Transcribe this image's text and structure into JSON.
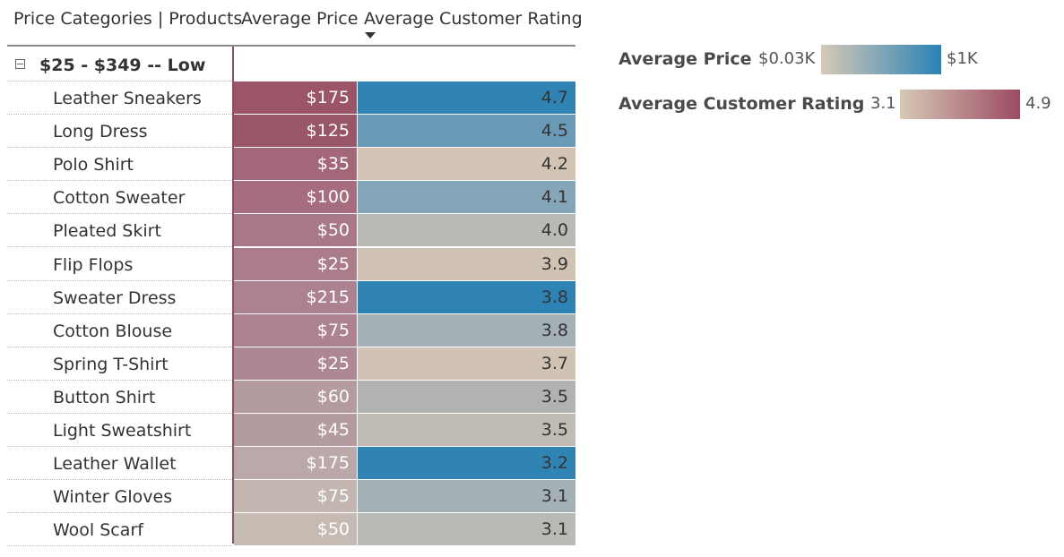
{
  "header": {
    "col1": "Price Categories | Products",
    "col2": "Average Price",
    "col3": "Average Customer Rating"
  },
  "group": {
    "label": "$25 - $349 -- Low"
  },
  "rows": [
    {
      "product": "Leather Sneakers",
      "price": "$175",
      "rating": "4.7",
      "price_color": "#9c5468",
      "rating_color": "#2f84b3",
      "price_text_color": "#ffffff",
      "rating_text_color": "#333333"
    },
    {
      "product": "Long Dress",
      "price": "$125",
      "rating": "4.5",
      "price_color": "#9a5669",
      "rating_color": "#6b9ab6",
      "price_text_color": "#ffffff",
      "rating_text_color": "#333333"
    },
    {
      "product": "Polo Shirt",
      "price": "$35",
      "rating": "4.2",
      "price_color": "#a4677a",
      "rating_color": "#d2c3b4",
      "price_text_color": "#ffffff",
      "rating_text_color": "#333333"
    },
    {
      "product": "Cotton Sweater",
      "price": "$100",
      "rating": "4.1",
      "price_color": "#a66d7f",
      "rating_color": "#85a6b8",
      "price_text_color": "#ffffff",
      "rating_text_color": "#333333"
    },
    {
      "product": "Pleated Skirt",
      "price": "$50",
      "rating": "4.0",
      "price_color": "#a97887",
      "rating_color": "#b9bab5",
      "price_text_color": "#ffffff",
      "rating_text_color": "#333333"
    },
    {
      "product": "Flip Flops",
      "price": "$25",
      "rating": "3.9",
      "price_color": "#ab7d8b",
      "rating_color": "#d1c3b4",
      "price_text_color": "#ffffff",
      "rating_text_color": "#333333"
    },
    {
      "product": "Sweater Dress",
      "price": "$215",
      "rating": "3.8",
      "price_color": "#ad8290",
      "rating_color": "#2e83b4",
      "price_text_color": "#ffffff",
      "rating_text_color": "#333333"
    },
    {
      "product": "Cotton Blouse",
      "price": "$75",
      "rating": "3.8",
      "price_color": "#ad8290",
      "rating_color": "#a3b1b7",
      "price_text_color": "#ffffff",
      "rating_text_color": "#333333"
    },
    {
      "product": "Spring T-Shirt",
      "price": "$25",
      "rating": "3.7",
      "price_color": "#ae8794",
      "rating_color": "#d1c3b4",
      "price_text_color": "#ffffff",
      "rating_text_color": "#333333"
    },
    {
      "product": "Button Shirt",
      "price": "$60",
      "rating": "3.5",
      "price_color": "#b39ba0",
      "rating_color": "#b1b3b1",
      "price_text_color": "#ffffff",
      "rating_text_color": "#333333"
    },
    {
      "product": "Light Sweatshirt",
      "price": "$45",
      "rating": "3.5",
      "price_color": "#b39ba0",
      "rating_color": "#c0bcb3",
      "price_text_color": "#ffffff",
      "rating_text_color": "#333333"
    },
    {
      "product": "Leather Wallet",
      "price": "$175",
      "rating": "3.2",
      "price_color": "#bba9a9",
      "rating_color": "#2f84b3",
      "price_text_color": "#ffffff",
      "rating_text_color": "#333333"
    },
    {
      "product": "Winter Gloves",
      "price": "$75",
      "rating": "3.1",
      "price_color": "#c3b6b0",
      "rating_color": "#a3b1b7",
      "price_text_color": "#ffffff",
      "rating_text_color": "#333333"
    },
    {
      "product": "Wool Scarf",
      "price": "$50",
      "rating": "3.1",
      "price_color": "#c6bbb3",
      "rating_color": "#b9bab5",
      "price_text_color": "#ffffff",
      "rating_text_color": "#333333"
    }
  ],
  "legend": {
    "price": {
      "title": "Average Price",
      "min": "$0.03K",
      "max": "$1K",
      "color_from": "#d6c9b6",
      "color_to": "#2a82b5"
    },
    "rating": {
      "title": "Average Customer Rating",
      "min": "3.1",
      "max": "4.9",
      "color_from": "#d6c9b6",
      "color_to": "#9c4a62"
    }
  }
}
